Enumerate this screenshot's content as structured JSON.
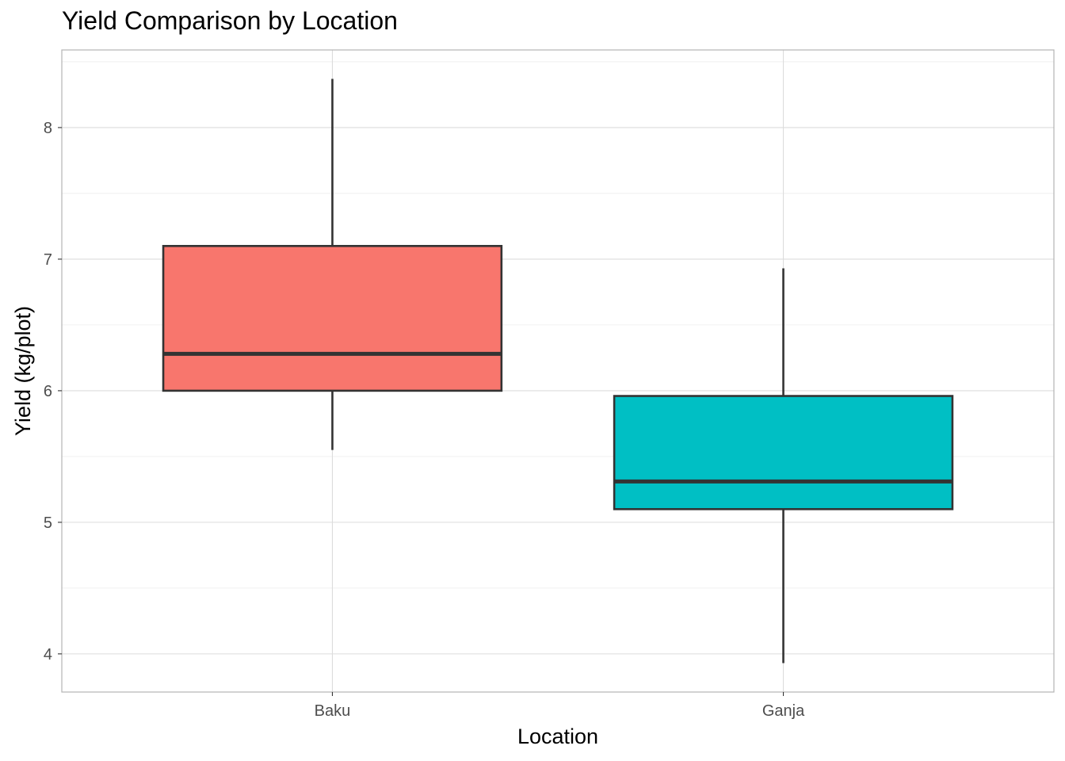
{
  "chart_data": {
    "type": "box",
    "title": "Yield Comparison by Location",
    "xlabel": "Location",
    "ylabel": "Yield (kg/plot)",
    "categories": [
      "Baku",
      "Ganja"
    ],
    "ylim": [
      3.71,
      8.59
    ],
    "y_ticks": [
      4,
      5,
      6,
      7,
      8
    ],
    "grid": true,
    "legend": "none",
    "boxes": [
      {
        "category": "Baku",
        "min": 5.55,
        "q1": 6.0,
        "median": 6.28,
        "q3": 7.1,
        "max": 8.37,
        "color": "#F8766D"
      },
      {
        "category": "Ganja",
        "min": 3.93,
        "q1": 5.1,
        "median": 5.31,
        "q3": 5.96,
        "max": 6.93,
        "color": "#00BFC4"
      }
    ]
  }
}
